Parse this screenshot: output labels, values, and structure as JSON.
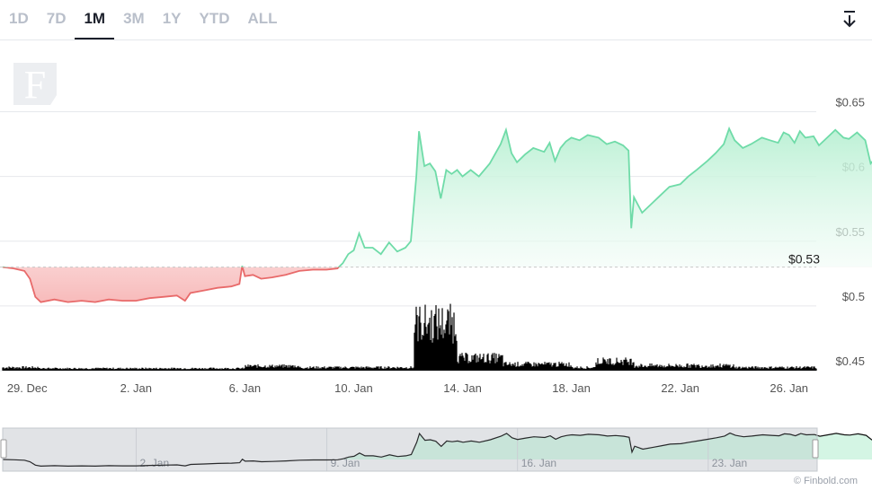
{
  "tabs": [
    "1D",
    "7D",
    "1M",
    "3M",
    "1Y",
    "YTD",
    "ALL"
  ],
  "active_tab": "1M",
  "logo_letter": "F",
  "footer": "© Finbold.com",
  "colors": {
    "up_line": "#6fdba8",
    "down_line": "#e86a6a",
    "up_fill": "#d4f5e4",
    "down_fill": "#fbd6d6",
    "volume": "#000000",
    "grid": "#e6e8ec",
    "axis_text": "#555555",
    "reference_line": "#c8c8c8"
  },
  "chart_data": {
    "type": "area",
    "reference_value": 0.53,
    "reference_label": "$0.53",
    "y_ticks": [
      {
        "value": 0.65,
        "label": "$0.65"
      },
      {
        "value": 0.6,
        "label": "$0.6"
      },
      {
        "value": 0.55,
        "label": "$0.55"
      },
      {
        "value": 0.5,
        "label": "$0.5"
      },
      {
        "value": 0.45,
        "label": "$0.45"
      }
    ],
    "x_ticks": [
      "29. Dec",
      "2. Jan",
      "6. Jan",
      "10. Jan",
      "14. Jan",
      "18. Jan",
      "22. Jan",
      "26. Jan"
    ],
    "x_tick_days": [
      0,
      4,
      8,
      12,
      16,
      20,
      24,
      28
    ],
    "x_range_days": [
      -0.9,
      29.0
    ],
    "ylim": [
      0.45,
      0.667
    ],
    "series": [
      {
        "points": [
          [
            -0.9,
            0.53
          ],
          [
            -0.5,
            0.529
          ],
          [
            -0.1,
            0.527
          ],
          [
            0.1,
            0.521
          ],
          [
            0.3,
            0.507
          ],
          [
            0.5,
            0.503
          ],
          [
            1.0,
            0.505
          ],
          [
            1.5,
            0.503
          ],
          [
            2.0,
            0.504
          ],
          [
            2.5,
            0.503
          ],
          [
            3.0,
            0.505
          ],
          [
            3.5,
            0.504
          ],
          [
            4.0,
            0.504
          ],
          [
            4.5,
            0.506
          ],
          [
            5.0,
            0.507
          ],
          [
            5.5,
            0.508
          ],
          [
            5.8,
            0.504
          ],
          [
            6.0,
            0.51
          ],
          [
            6.5,
            0.512
          ],
          [
            7.0,
            0.514
          ],
          [
            7.5,
            0.515
          ],
          [
            7.8,
            0.517
          ],
          [
            7.9,
            0.531
          ],
          [
            8.0,
            0.523
          ],
          [
            8.3,
            0.524
          ],
          [
            8.6,
            0.521
          ],
          [
            9.0,
            0.522
          ],
          [
            9.5,
            0.524
          ],
          [
            10.0,
            0.527
          ],
          [
            10.5,
            0.528
          ],
          [
            11.0,
            0.528
          ],
          [
            11.4,
            0.529
          ],
          [
            11.6,
            0.533
          ],
          [
            11.8,
            0.54
          ],
          [
            12.0,
            0.543
          ],
          [
            12.2,
            0.556
          ],
          [
            12.4,
            0.545
          ],
          [
            12.7,
            0.545
          ],
          [
            13.0,
            0.54
          ],
          [
            13.3,
            0.549
          ],
          [
            13.6,
            0.542
          ],
          [
            13.9,
            0.545
          ],
          [
            14.1,
            0.55
          ],
          [
            14.3,
            0.6
          ],
          [
            14.4,
            0.635
          ],
          [
            14.6,
            0.608
          ],
          [
            14.8,
            0.61
          ],
          [
            15.0,
            0.604
          ],
          [
            15.2,
            0.583
          ],
          [
            15.4,
            0.605
          ],
          [
            15.6,
            0.602
          ],
          [
            15.8,
            0.605
          ],
          [
            16.0,
            0.6
          ],
          [
            16.3,
            0.605
          ],
          [
            16.6,
            0.6
          ],
          [
            17.0,
            0.61
          ],
          [
            17.4,
            0.625
          ],
          [
            17.6,
            0.636
          ],
          [
            17.8,
            0.618
          ],
          [
            18.0,
            0.611
          ],
          [
            18.3,
            0.617
          ],
          [
            18.6,
            0.622
          ],
          [
            19.0,
            0.619
          ],
          [
            19.2,
            0.626
          ],
          [
            19.4,
            0.612
          ],
          [
            19.6,
            0.622
          ],
          [
            19.8,
            0.627
          ],
          [
            20.0,
            0.63
          ],
          [
            20.3,
            0.628
          ],
          [
            20.6,
            0.632
          ],
          [
            21.0,
            0.63
          ],
          [
            21.3,
            0.625
          ],
          [
            21.6,
            0.627
          ],
          [
            21.9,
            0.624
          ],
          [
            22.1,
            0.62
          ],
          [
            22.2,
            0.56
          ],
          [
            22.3,
            0.584
          ],
          [
            22.6,
            0.572
          ],
          [
            23.0,
            0.58
          ],
          [
            23.3,
            0.586
          ],
          [
            23.6,
            0.592
          ],
          [
            24.0,
            0.594
          ],
          [
            24.3,
            0.6
          ],
          [
            24.6,
            0.605
          ],
          [
            25.0,
            0.612
          ],
          [
            25.3,
            0.618
          ],
          [
            25.6,
            0.625
          ],
          [
            25.8,
            0.637
          ],
          [
            26.0,
            0.628
          ],
          [
            26.3,
            0.622
          ],
          [
            26.6,
            0.625
          ],
          [
            27.0,
            0.63
          ],
          [
            27.3,
            0.628
          ],
          [
            27.6,
            0.626
          ],
          [
            27.8,
            0.634
          ],
          [
            28.0,
            0.632
          ],
          [
            28.2,
            0.626
          ],
          [
            28.4,
            0.635
          ],
          [
            28.6,
            0.63
          ],
          [
            28.9,
            0.631
          ],
          [
            29.1,
            0.624
          ],
          [
            29.4,
            0.63
          ],
          [
            29.7,
            0.636
          ],
          [
            30.0,
            0.63
          ],
          [
            30.2,
            0.629
          ],
          [
            30.5,
            0.634
          ],
          [
            30.8,
            0.628
          ],
          [
            31.0,
            0.61
          ],
          [
            31.2,
            0.615
          ],
          [
            31.5,
            0.624
          ],
          [
            31.8,
            0.62
          ],
          [
            32.0,
            0.628
          ],
          [
            32.3,
            0.63
          ]
        ]
      }
    ],
    "navigator_ticks": [
      "2. Jan",
      "9. Jan",
      "16. Jan",
      "23. Jan"
    ]
  }
}
